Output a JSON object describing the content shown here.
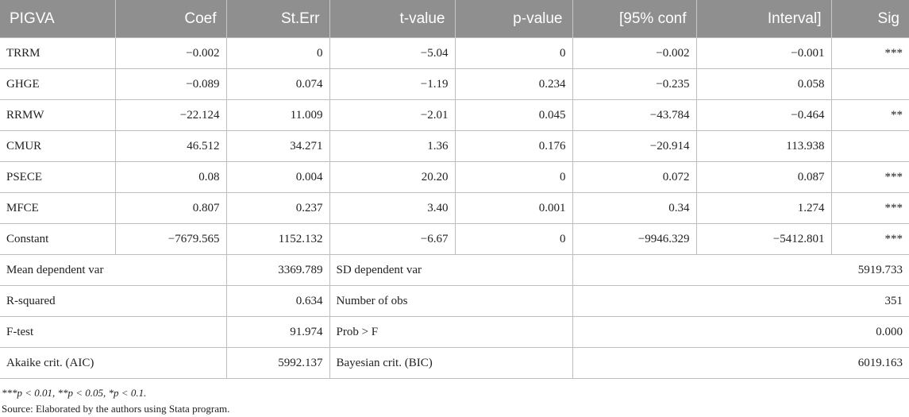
{
  "headers": [
    "PIGVA",
    "Coef",
    "St.Err",
    "t-value",
    "p-value",
    "[95% conf",
    "Interval]",
    "Sig"
  ],
  "rows": [
    [
      "TRRM",
      "−0.002",
      "0",
      "−5.04",
      "0",
      "−0.002",
      "−0.001",
      "***"
    ],
    [
      "GHGE",
      "−0.089",
      "0.074",
      "−1.19",
      "0.234",
      "−0.235",
      "0.058",
      ""
    ],
    [
      "RRMW",
      "−22.124",
      "11.009",
      "−2.01",
      "0.045",
      "−43.784",
      "−0.464",
      "**"
    ],
    [
      "CMUR",
      "46.512",
      "34.271",
      "1.36",
      "0.176",
      "−20.914",
      "113.938",
      ""
    ],
    [
      "PSECE",
      "0.08",
      "0.004",
      "20.20",
      "0",
      "0.072",
      "0.087",
      "***"
    ],
    [
      "MFCE",
      "0.807",
      "0.237",
      "3.40",
      "0.001",
      "0.34",
      "1.274",
      "***"
    ],
    [
      "Constant",
      "−7679.565",
      "1152.132",
      "−6.67",
      "0",
      "−9946.329",
      "−5412.801",
      "***"
    ]
  ],
  "stats": [
    [
      "Mean dependent var",
      "3369.789",
      "SD dependent var",
      "5919.733"
    ],
    [
      "R-squared",
      "0.634",
      "Number of obs",
      "351"
    ],
    [
      "F-test",
      "91.974",
      "Prob > F",
      "0.000"
    ],
    [
      "Akaike crit. (AIC)",
      "5992.137",
      "Bayesian crit. (BIC)",
      "6019.163"
    ]
  ],
  "notes": {
    "significance": "***p < 0.01, **p < 0.05, *p < 0.1.",
    "source": "Source: Elaborated by the authors using Stata program."
  }
}
